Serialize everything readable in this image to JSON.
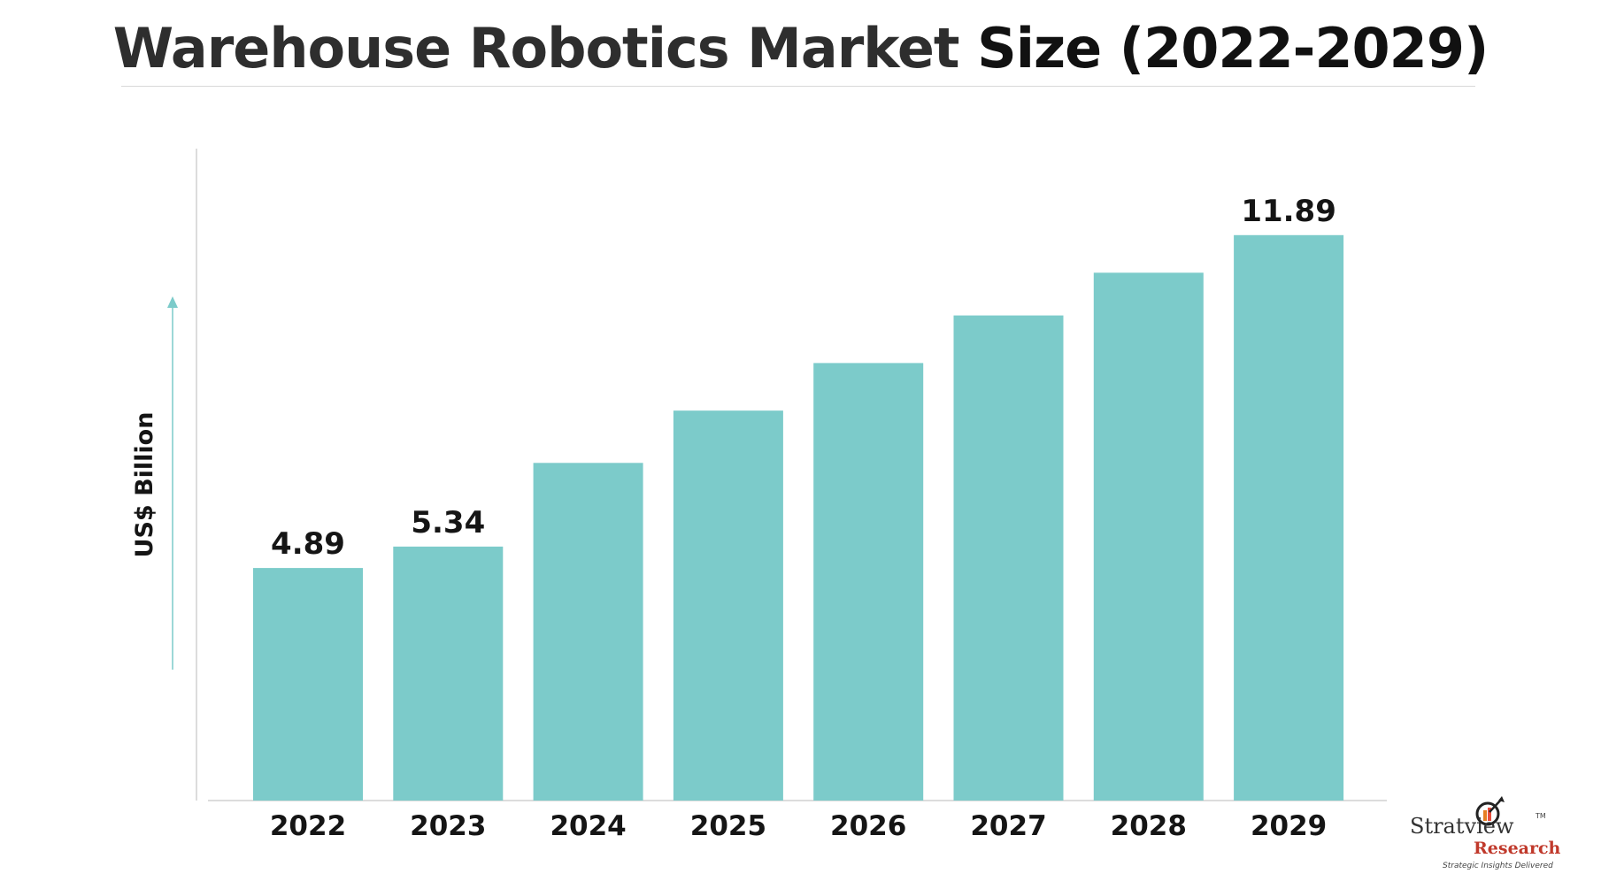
{
  "title": {
    "part1": "Warehouse Robotics Market ",
    "part2": "Size (2022-2029)"
  },
  "logo": {
    "name": "Stratview",
    "tm": "TM",
    "research": "Research",
    "tagline": "Strategic Insights Delivered"
  },
  "colors": {
    "bar": "#7ccbca",
    "axis_arrow": "#7ccbca",
    "text": "#151515"
  },
  "chart_data": {
    "type": "bar",
    "title": "Warehouse Robotics Market Size (2022-2029)",
    "ylabel": "US$ Billion",
    "xlabel": "",
    "categories": [
      "2022",
      "2023",
      "2024",
      "2025",
      "2026",
      "2027",
      "2028",
      "2029"
    ],
    "values": [
      4.89,
      5.34,
      7.1,
      8.2,
      9.2,
      10.2,
      11.1,
      11.89
    ],
    "data_labels": [
      "4.89",
      "5.34",
      "",
      "",
      "",
      "",
      "",
      "11.89"
    ],
    "ylim": [
      0,
      12.5
    ],
    "grid": false,
    "legend": "none"
  }
}
